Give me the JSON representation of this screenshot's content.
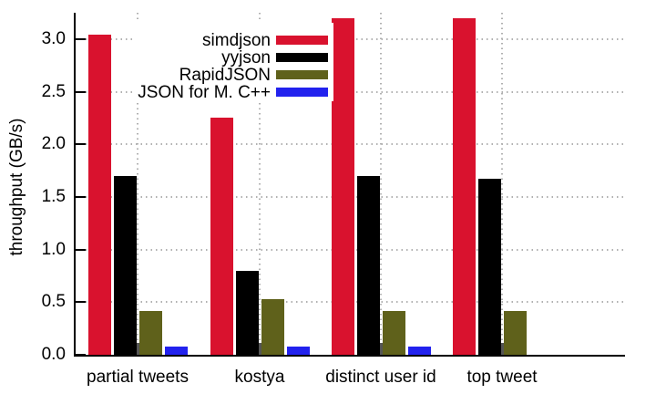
{
  "chart_data": {
    "type": "bar",
    "title": "",
    "ylabel": "throughput (GB/s)",
    "xlabel": "",
    "categories": [
      "partial tweets",
      "kostya",
      "distinct user id",
      "top tweet"
    ],
    "series": [
      {
        "name": "simdjson",
        "color": "#d9122e",
        "values": [
          3.04,
          2.25,
          3.2,
          3.2
        ]
      },
      {
        "name": "yyjson",
        "color": "#000000",
        "values": [
          1.7,
          0.8,
          1.7,
          1.67
        ]
      },
      {
        "name": "RapidJSON",
        "color": "#5f611b",
        "values": [
          0.42,
          0.53,
          0.42,
          0.42
        ]
      },
      {
        "name": "JSON for M. C++",
        "color": "#2222ee",
        "values": [
          0.08,
          0.08,
          0.08,
          0.0
        ]
      }
    ],
    "ylim": [
      0,
      3.25
    ],
    "yticks": [
      0,
      0.5,
      1,
      1.5,
      2,
      2.5,
      3
    ],
    "ytick_labels": [
      "0.0",
      "0.5",
      "1.0",
      "1.5",
      "2.0",
      "2.5",
      "3.0"
    ],
    "grid": {
      "horizontal": "dotted at each y tick",
      "vertical": "dotted at each category center",
      "color": "#b0b0b0"
    },
    "legend_position": "top-left inside plot",
    "axis_color": "#000000"
  }
}
